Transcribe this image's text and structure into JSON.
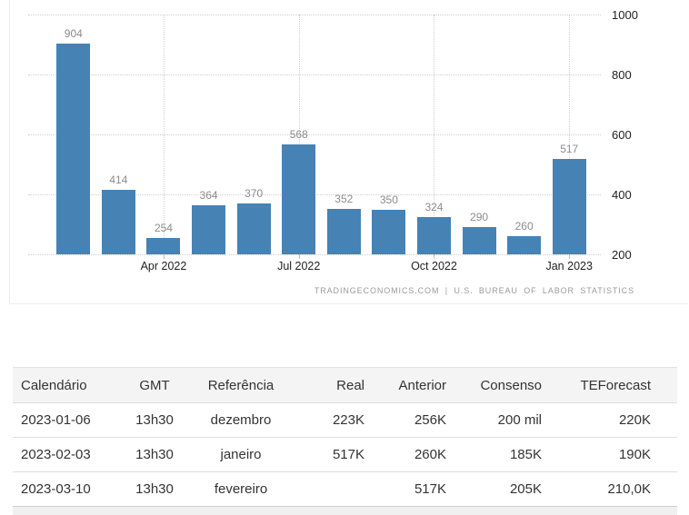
{
  "chart_data": {
    "type": "bar",
    "values": [
      904,
      414,
      254,
      364,
      370,
      568,
      352,
      350,
      324,
      290,
      260,
      517
    ],
    "value_labels": [
      "904",
      "414",
      "254",
      "364",
      "370",
      "568",
      "352",
      "350",
      "324",
      "290",
      "260",
      "517"
    ],
    "x_ticks": [
      {
        "bar_index": 2,
        "label": "Apr 2022"
      },
      {
        "bar_index": 5,
        "label": "Jul 2022"
      },
      {
        "bar_index": 8,
        "label": "Oct 2022"
      },
      {
        "bar_index": 11,
        "label": "Jan 2023"
      }
    ],
    "y_ticks": [
      200,
      400,
      600,
      800,
      1000
    ],
    "ylim": [
      200,
      1000
    ],
    "y_axis_position": "right",
    "grid": "dotted",
    "legend": "none",
    "bar_color": "#4682b4",
    "value_label_color": "#8c8c8c",
    "attribution": "TRADINGECONOMICS.COM | U.S. BUREAU OF LABOR STATISTICS"
  },
  "table": {
    "headers": [
      "Calendário",
      "GMT",
      "Referência",
      "Real",
      "Anterior",
      "Consenso",
      "TEForecast"
    ],
    "rows": [
      [
        "2023-01-06",
        "13h30",
        "dezembro",
        "223K",
        "256K",
        "200 mil",
        "220K"
      ],
      [
        "2023-02-03",
        "13h30",
        "janeiro",
        "517K",
        "260K",
        "185K",
        "190K"
      ],
      [
        "2023-03-10",
        "13h30",
        "fevereiro",
        "",
        "517K",
        "205K",
        "210,0K"
      ]
    ]
  }
}
